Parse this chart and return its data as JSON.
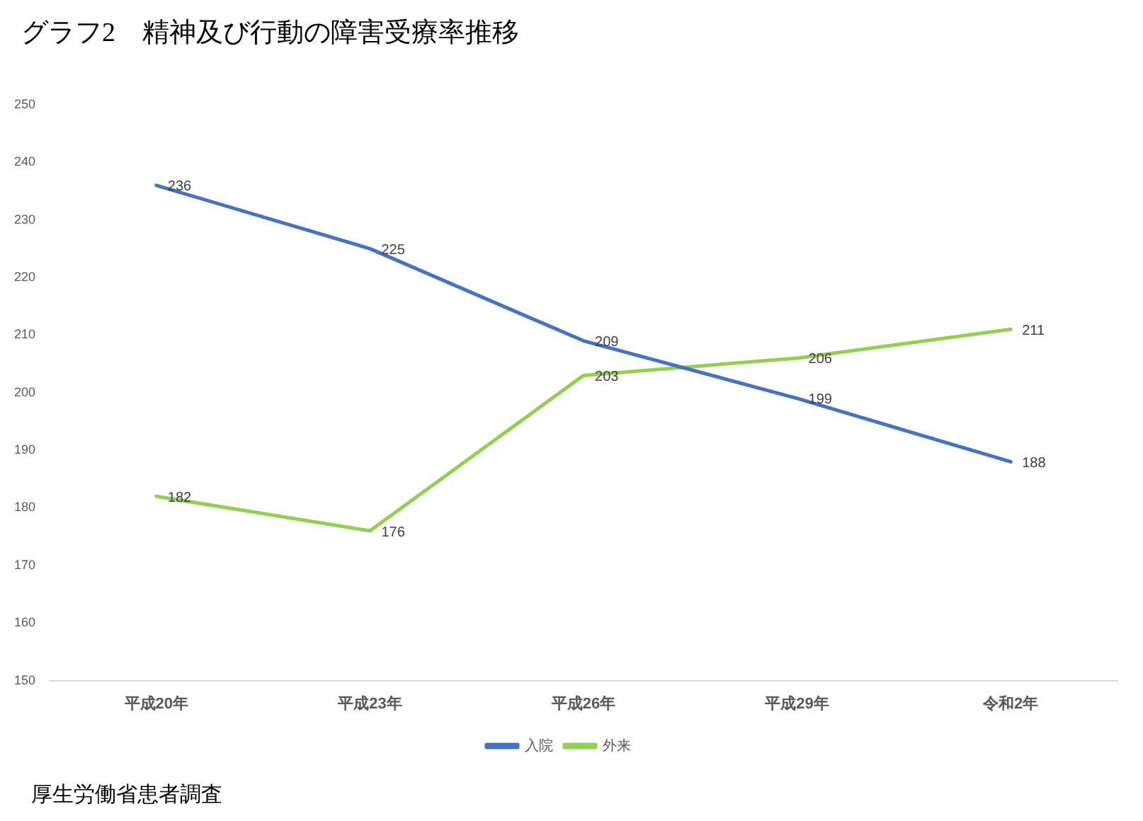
{
  "chart_data": {
    "type": "line",
    "title": "グラフ2　精神及び行動の障害受療率推移",
    "categories": [
      "平成20年",
      "平成23年",
      "平成26年",
      "平成29年",
      "令和2年"
    ],
    "series": [
      {
        "name": "入院",
        "color": "#4472c4",
        "values": [
          236,
          225,
          209,
          199,
          188
        ]
      },
      {
        "name": "外来",
        "color": "#92d050",
        "values": [
          182,
          176,
          203,
          206,
          211
        ]
      }
    ],
    "ylim": [
      150,
      250
    ],
    "yticks": [
      150,
      160,
      170,
      180,
      190,
      200,
      210,
      220,
      230,
      240,
      250
    ],
    "legend": "bottom",
    "data_labels": true,
    "annotations": [
      "厚生労働省患者調査"
    ]
  }
}
